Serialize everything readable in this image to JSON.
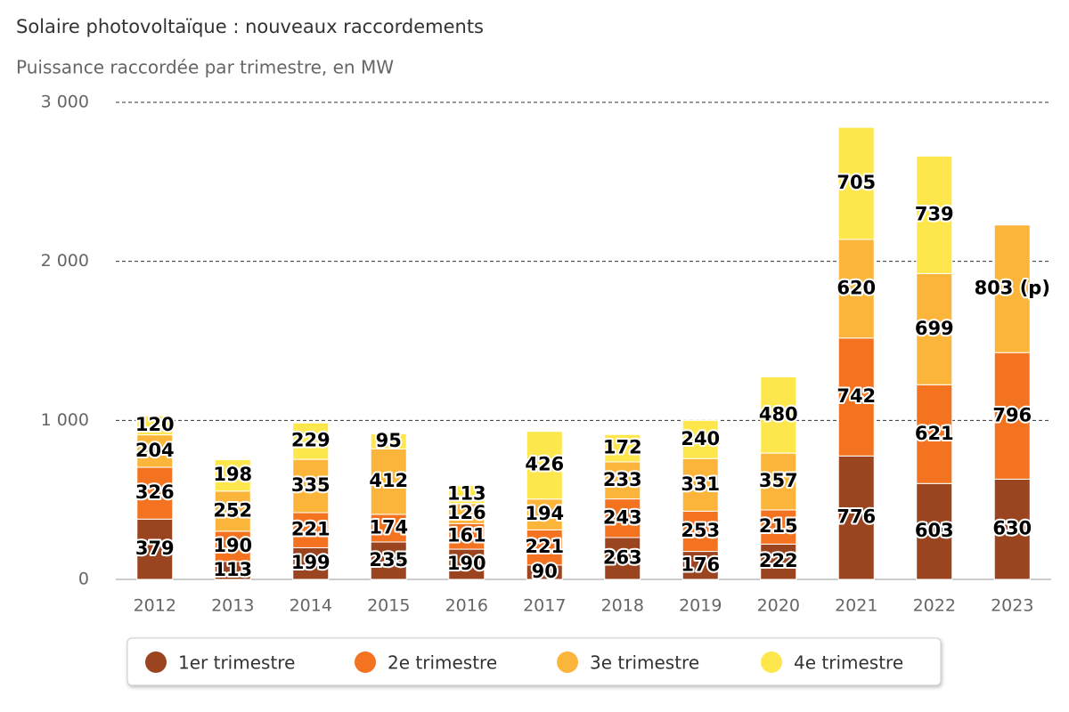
{
  "chart_data": {
    "type": "stacked-bar",
    "title": "Solaire photovoltaïque : nouveaux raccordements",
    "subtitle": "Puissance raccordée par trimestre, en MW",
    "categories": [
      "2012",
      "2013",
      "2014",
      "2015",
      "2016",
      "2017",
      "2018",
      "2019",
      "2020",
      "2021",
      "2022",
      "2023"
    ],
    "series": [
      {
        "name": "1er trimestre",
        "color": "#9a4420",
        "values": [
          379,
          113,
          199,
          235,
          190,
          90,
          263,
          176,
          222,
          776,
          603,
          630
        ]
      },
      {
        "name": "2e trimestre",
        "color": "#f47321",
        "values": [
          326,
          190,
          221,
          174,
          161,
          221,
          243,
          253,
          215,
          742,
          621,
          796
        ]
      },
      {
        "name": "3e trimestre",
        "color": "#fbb53a",
        "values": [
          204,
          252,
          335,
          412,
          126,
          194,
          233,
          331,
          357,
          620,
          699,
          803
        ],
        "value_labels": [
          "204",
          "252",
          "335",
          "412",
          "126",
          "194",
          "233",
          "331",
          "357",
          "620",
          "699",
          "803 (p)"
        ]
      },
      {
        "name": "4e trimestre",
        "color": "#fde74c",
        "values": [
          120,
          198,
          229,
          95,
          113,
          426,
          172,
          240,
          480,
          705,
          739,
          null
        ]
      }
    ],
    "ylim": [
      0,
      3000
    ],
    "yticks": [
      0,
      {
        "value": 1000,
        "label": "1 000"
      },
      {
        "value": 2000,
        "label": "2 000"
      },
      {
        "value": 3000,
        "label": "3 000"
      }
    ],
    "grid": true
  }
}
